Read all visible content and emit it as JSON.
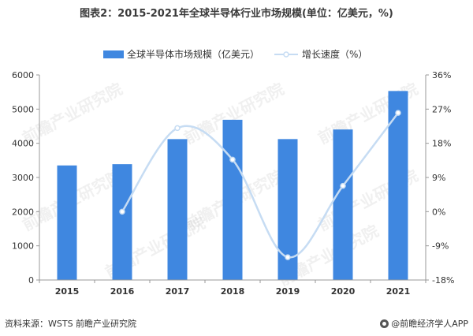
{
  "title": "图表2：2015-2021年全球半导体行业市场规模(单位：亿美元，%)",
  "source": "资料来源：WSTS 前瞻产业研究院",
  "brand": "@前瞻经济学人APP",
  "watermark": "前瞻产业研究院",
  "colors": {
    "bar": "#3f87e0",
    "line": "#c6dcf3",
    "point": "#ffffff"
  },
  "chart_data": {
    "type": "bar",
    "categories": [
      "2015",
      "2016",
      "2017",
      "2018",
      "2019",
      "2020",
      "2021"
    ],
    "series": [
      {
        "name": "全球半导体市场规模（亿美元）",
        "type": "bar",
        "axis": "left",
        "values": [
          3352,
          3389,
          4122,
          4688,
          4123,
          4404,
          5530
        ]
      },
      {
        "name": "增长速度（%）",
        "type": "line",
        "axis": "right",
        "values": [
          null,
          0.0,
          22.0,
          13.7,
          -12.0,
          6.8,
          26.0
        ]
      }
    ],
    "y_left": {
      "ylim": [
        0,
        6000
      ],
      "ticks": [
        "0",
        "1000",
        "2000",
        "3000",
        "4000",
        "5000",
        "6000"
      ]
    },
    "y_right": {
      "ylim": [
        -18,
        36
      ],
      "ticks": [
        "-18%",
        "-9%",
        "0%",
        "9%",
        "18%",
        "27%",
        "36%"
      ]
    },
    "legend": "top-center",
    "grid": false
  }
}
